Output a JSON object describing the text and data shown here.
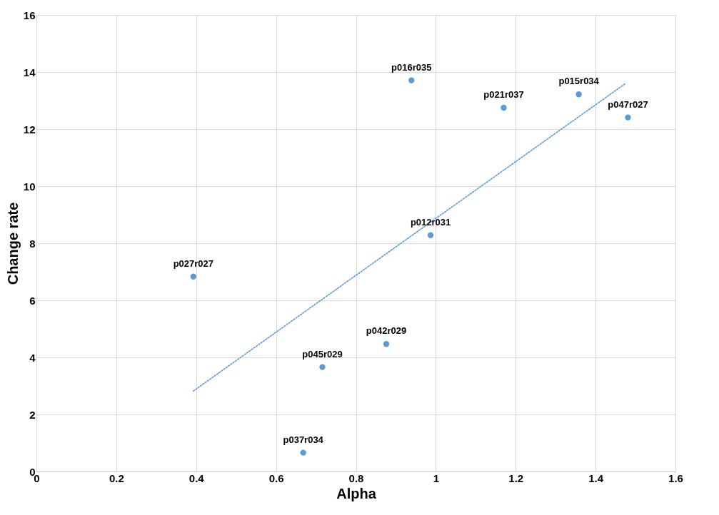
{
  "chart_data": {
    "type": "scatter",
    "xlabel": "Alpha",
    "ylabel": "Change rate",
    "xlim": [
      0,
      1.6
    ],
    "ylim": [
      0,
      16
    ],
    "xticks": [
      0,
      0.2,
      0.4,
      0.6,
      0.8,
      1,
      1.2,
      1.4,
      1.6
    ],
    "yticks": [
      0,
      2,
      4,
      6,
      8,
      10,
      12,
      14,
      16
    ],
    "grid": true,
    "series": [
      {
        "color": "#5b9bd5",
        "marker": "circle",
        "x": [
          0.939,
          1.17,
          1.358,
          1.481,
          0.987,
          0.393,
          0.876,
          0.716,
          0.668
        ],
        "values": [
          13.71,
          12.75,
          13.22,
          12.41,
          8.28,
          6.83,
          4.47,
          3.66,
          0.66
        ]
      },
      {
        "type": "line",
        "color": "#5b9bd5",
        "line_style": "dotted",
        "x": [
          0.393,
          1.475
        ],
        "values": [
          2.82,
          13.6
        ]
      }
    ],
    "annotations": [
      {
        "text": "p016r035",
        "x": 0.939,
        "y": 13.71
      },
      {
        "text": "p021r037",
        "x": 1.17,
        "y": 12.75
      },
      {
        "text": "p015r034",
        "x": 1.358,
        "y": 13.22
      },
      {
        "text": "p047r027",
        "x": 1.481,
        "y": 12.41
      },
      {
        "text": "p012r031",
        "x": 0.987,
        "y": 8.28
      },
      {
        "text": "p027r027",
        "x": 0.393,
        "y": 6.83
      },
      {
        "text": "p042r029",
        "x": 0.876,
        "y": 4.47
      },
      {
        "text": "p045r029",
        "x": 0.716,
        "y": 3.66
      },
      {
        "text": "p037r034",
        "x": 0.668,
        "y": 0.66
      }
    ]
  }
}
